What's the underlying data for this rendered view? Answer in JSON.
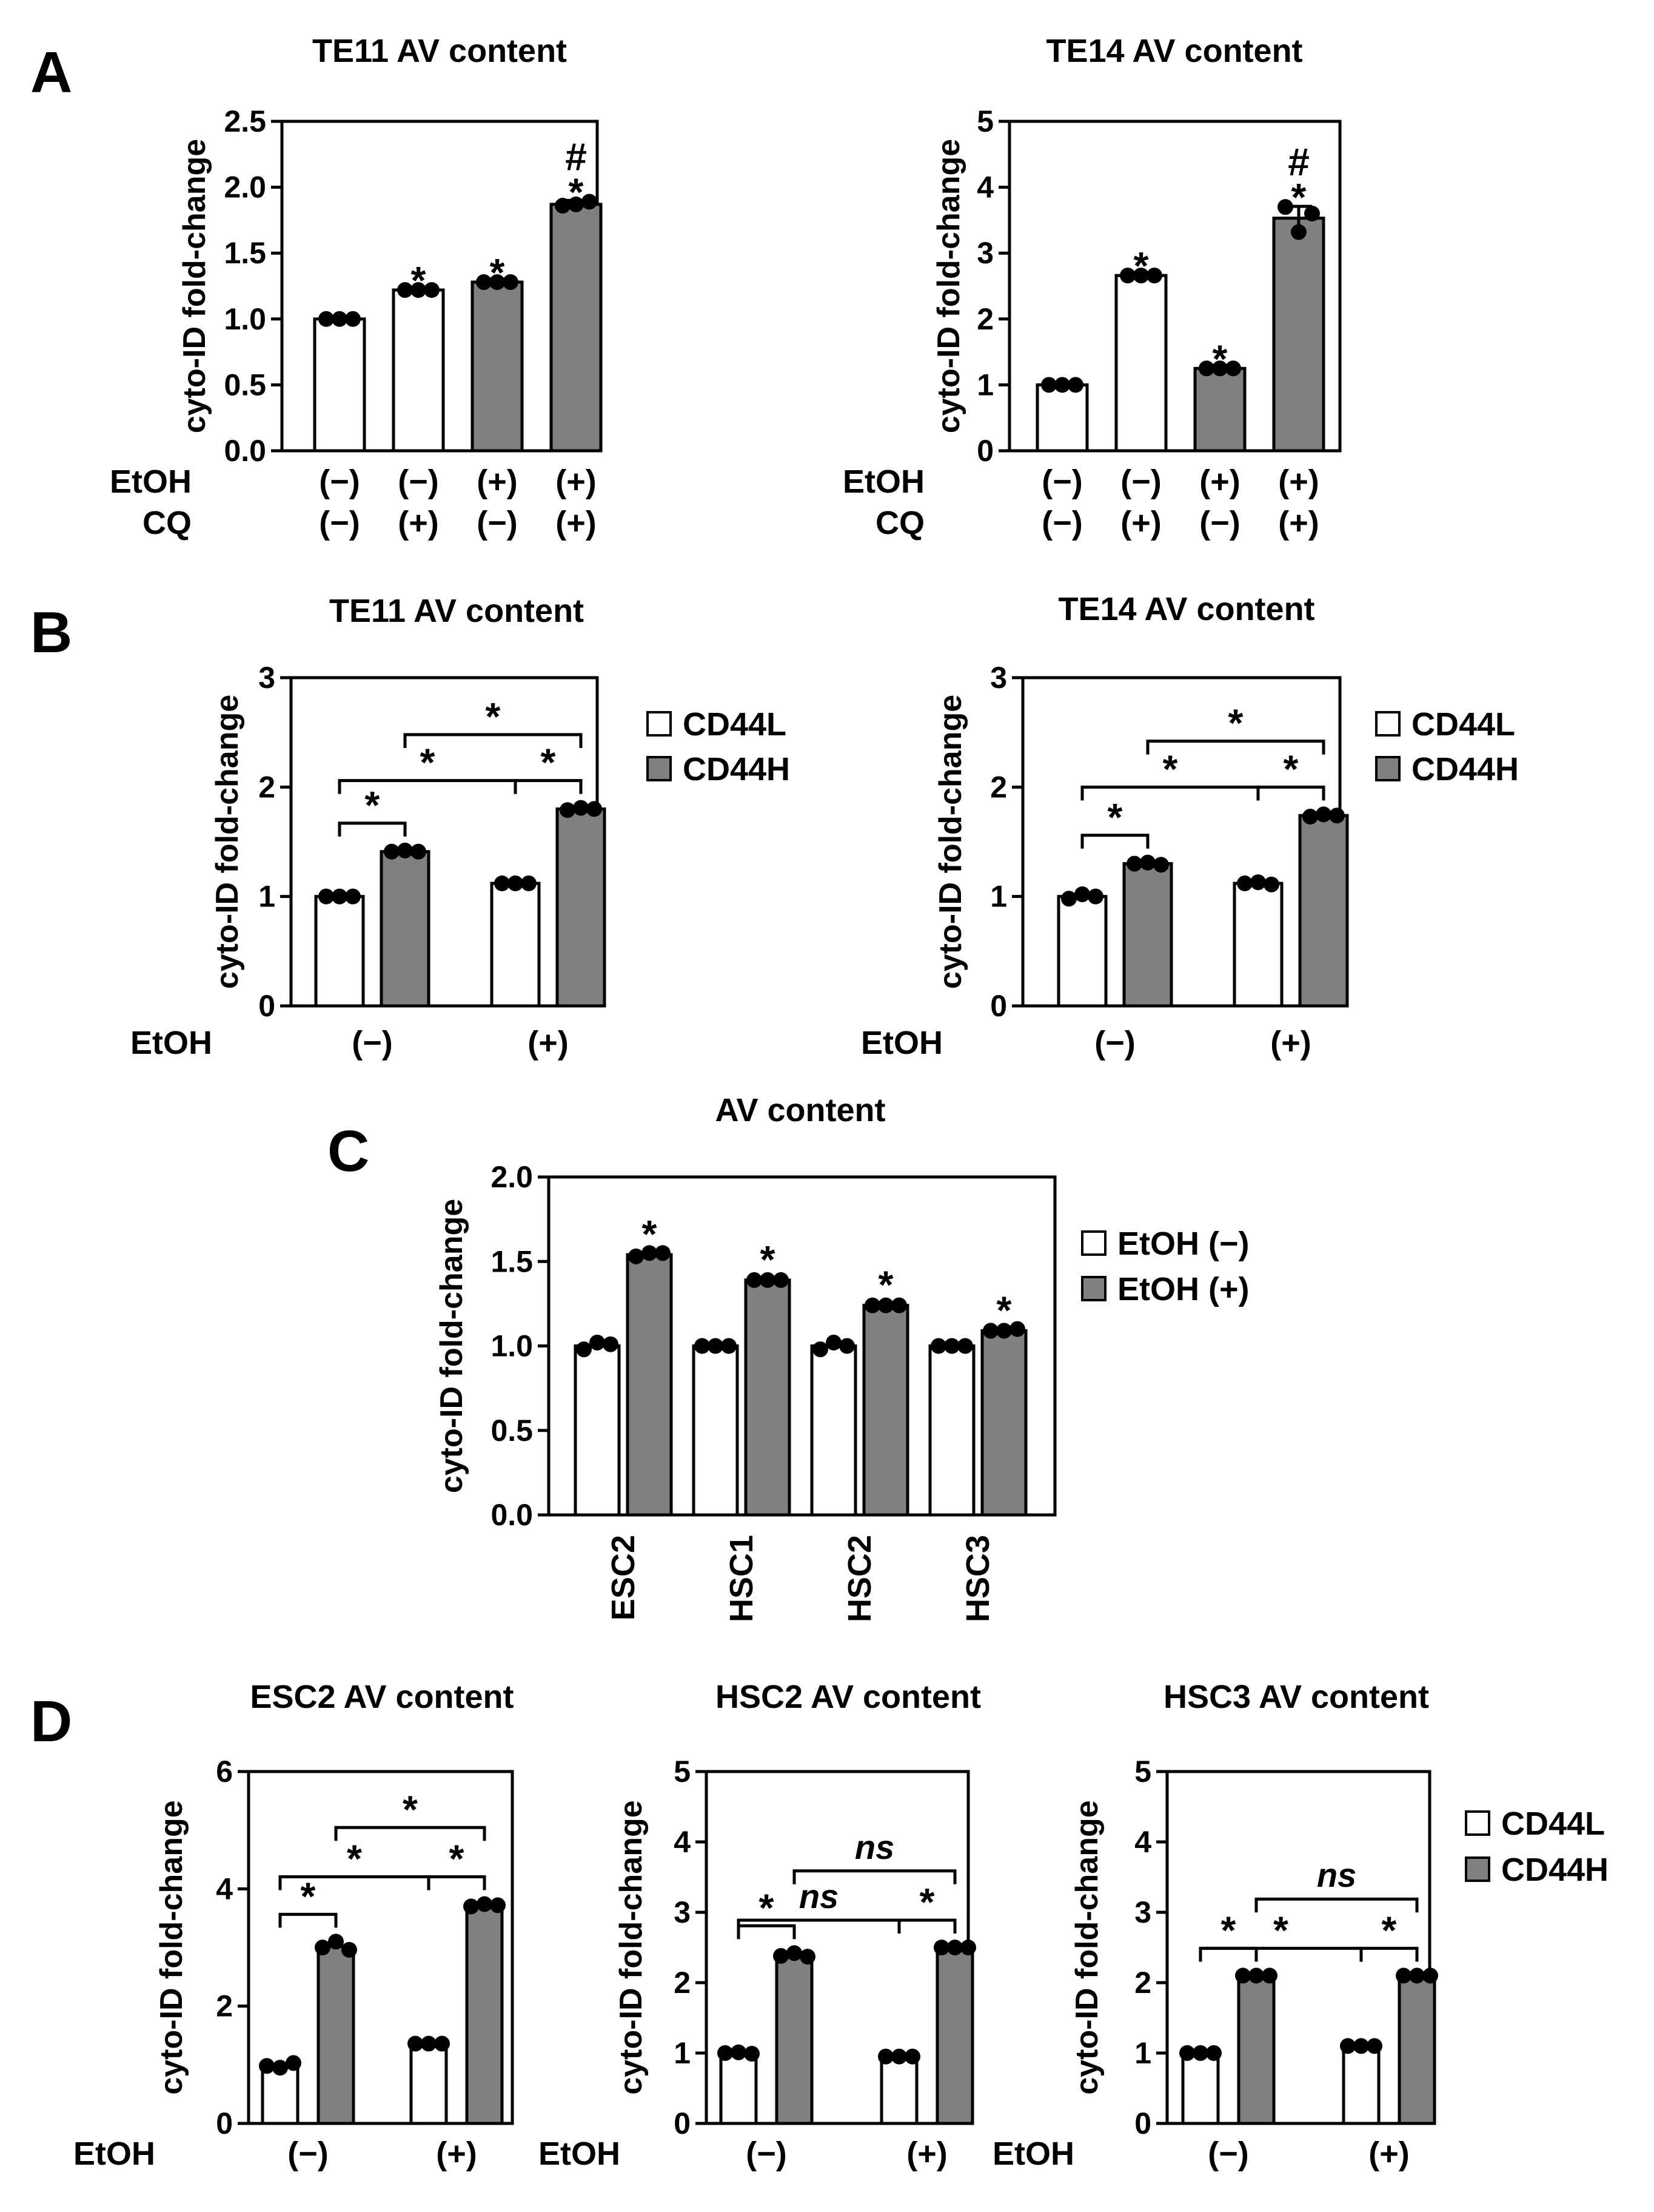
{
  "panel_labels": [
    "A",
    "B",
    "C",
    "D"
  ],
  "fills": {
    "white": "#ffffff",
    "grey": "#808080"
  },
  "chart_data": [
    {
      "id": "a1",
      "panel": "A",
      "type": "bar",
      "title": "TE11 AV content",
      "ylabel": "cyto-ID fold-change",
      "ylim": [
        0,
        2.5
      ],
      "yticks": [
        "0.0",
        "0.5",
        "1.0",
        "1.5",
        "2.0",
        "2.5"
      ],
      "row_labels": [
        "EtOH",
        "CQ"
      ],
      "groups": [
        [
          "(−)",
          "(−)"
        ],
        [
          "(−)",
          "(+)"
        ],
        [
          "(+)",
          "(−)"
        ],
        [
          "(+)",
          "(+)"
        ]
      ],
      "values": [
        1.0,
        1.22,
        1.28,
        1.87
      ],
      "errors": [
        0.01,
        0.01,
        0.01,
        0.03
      ],
      "points": [
        [
          1.0,
          1.0,
          1.0
        ],
        [
          1.22,
          1.22,
          1.22
        ],
        [
          1.28,
          1.28,
          1.28
        ],
        [
          1.86,
          1.87,
          1.89
        ]
      ],
      "fills": [
        "white",
        "white",
        "grey",
        "grey"
      ],
      "marks": [
        [],
        [
          "*"
        ],
        [
          "*"
        ],
        [
          "#",
          "*"
        ]
      ]
    },
    {
      "id": "a2",
      "panel": "A",
      "type": "bar",
      "title": "TE14 AV content",
      "ylabel": "cyto-ID fold-change",
      "ylim": [
        0,
        5
      ],
      "yticks": [
        "0",
        "1",
        "2",
        "3",
        "4",
        "5"
      ],
      "row_labels": [
        "EtOH",
        "CQ"
      ],
      "groups": [
        [
          "(−)",
          "(−)"
        ],
        [
          "(−)",
          "(+)"
        ],
        [
          "(+)",
          "(−)"
        ],
        [
          "(+)",
          "(+)"
        ]
      ],
      "values": [
        1.0,
        2.66,
        1.25,
        3.53
      ],
      "errors": [
        0.01,
        0.02,
        0.01,
        0.18
      ],
      "points": [
        [
          1.0,
          1.0,
          1.0
        ],
        [
          2.66,
          2.66,
          2.66
        ],
        [
          1.25,
          1.25,
          1.25
        ],
        [
          3.7,
          3.32,
          3.6
        ]
      ],
      "fills": [
        "white",
        "white",
        "grey",
        "grey"
      ],
      "marks": [
        [],
        [
          "*"
        ],
        [
          "*"
        ],
        [
          "#",
          "*"
        ]
      ]
    },
    {
      "id": "b1",
      "panel": "B",
      "type": "bar",
      "title": "TE11 AV content",
      "ylabel": "cyto-ID fold-change",
      "ylim": [
        0,
        3
      ],
      "yticks": [
        "0",
        "1",
        "2",
        "3"
      ],
      "row_labels": [
        "EtOH"
      ],
      "groups": [
        [
          "(−)"
        ],
        [
          "(+)"
        ]
      ],
      "series": [
        {
          "name": "CD44L",
          "fill": "white"
        },
        {
          "name": "CD44H",
          "fill": "grey"
        }
      ],
      "values": [
        [
          1.0,
          1.41
        ],
        [
          1.12,
          1.8
        ]
      ],
      "points": [
        [
          [
            1.0,
            1.0,
            1.0
          ],
          [
            1.41,
            1.42,
            1.41
          ]
        ],
        [
          [
            1.12,
            1.12,
            1.12
          ],
          [
            1.79,
            1.81,
            1.8
          ]
        ]
      ],
      "brackets": [
        {
          "a": [
            0,
            0
          ],
          "b": [
            0,
            1
          ],
          "level": 0,
          "label": "*"
        },
        {
          "a": [
            1,
            0
          ],
          "b": [
            1,
            1
          ],
          "level": 1,
          "label": "*"
        },
        {
          "a": [
            0,
            0
          ],
          "b": [
            1,
            0
          ],
          "level": 1,
          "label": "*"
        },
        {
          "a": [
            0,
            1
          ],
          "b": [
            1,
            1
          ],
          "level": 2,
          "label": "*"
        }
      ],
      "legend": [
        "CD44L",
        "CD44H"
      ]
    },
    {
      "id": "b2",
      "panel": "B",
      "type": "bar",
      "title": "TE14 AV content",
      "ylabel": "cyto-ID fold-change",
      "ylim": [
        0,
        3
      ],
      "yticks": [
        "0",
        "1",
        "2",
        "3"
      ],
      "row_labels": [
        "EtOH"
      ],
      "groups": [
        [
          "(−)"
        ],
        [
          "(+)"
        ]
      ],
      "series": [
        {
          "name": "CD44L",
          "fill": "white"
        },
        {
          "name": "CD44H",
          "fill": "grey"
        }
      ],
      "values": [
        [
          1.0,
          1.3
        ],
        [
          1.12,
          1.74
        ]
      ],
      "points": [
        [
          [
            0.98,
            1.02,
            1.0
          ],
          [
            1.3,
            1.31,
            1.29
          ]
        ],
        [
          [
            1.12,
            1.13,
            1.11
          ],
          [
            1.73,
            1.75,
            1.74
          ]
        ]
      ],
      "brackets": [
        {
          "a": [
            0,
            0
          ],
          "b": [
            0,
            1
          ],
          "level": 0,
          "label": "*"
        },
        {
          "a": [
            1,
            0
          ],
          "b": [
            1,
            1
          ],
          "level": 1,
          "label": "*"
        },
        {
          "a": [
            0,
            0
          ],
          "b": [
            1,
            0
          ],
          "level": 1,
          "label": "*"
        },
        {
          "a": [
            0,
            1
          ],
          "b": [
            1,
            1
          ],
          "level": 2,
          "label": "*"
        }
      ],
      "legend": [
        "CD44L",
        "CD44H"
      ]
    },
    {
      "id": "c",
      "panel": "C",
      "type": "bar",
      "title": "AV content",
      "ylabel": "cyto-ID fold-change",
      "ylim": [
        0,
        2.0
      ],
      "yticks": [
        "0.0",
        "0.5",
        "1.0",
        "1.5",
        "2.0"
      ],
      "categories": [
        "ESC2",
        "HSC1",
        "HSC2",
        "HSC3"
      ],
      "series": [
        {
          "name": "EtOH (−)",
          "fill": "white"
        },
        {
          "name": "EtOH (+)",
          "fill": "grey"
        }
      ],
      "values": [
        [
          1.0,
          1.54
        ],
        [
          1.0,
          1.39
        ],
        [
          1.0,
          1.24
        ],
        [
          1.0,
          1.09
        ]
      ],
      "points": [
        [
          [
            0.98,
            1.02,
            1.01
          ],
          [
            1.53,
            1.55,
            1.55
          ]
        ],
        [
          [
            1.0,
            1.0,
            1.0
          ],
          [
            1.39,
            1.39,
            1.39
          ]
        ],
        [
          [
            0.98,
            1.02,
            1.0
          ],
          [
            1.24,
            1.24,
            1.24
          ]
        ],
        [
          [
            1.0,
            1.0,
            1.0
          ],
          [
            1.09,
            1.09,
            1.1
          ]
        ]
      ],
      "marks": [
        "*",
        "*",
        "*",
        "*"
      ],
      "legend": [
        "EtOH (−)",
        "EtOH (+)"
      ]
    },
    {
      "id": "d1",
      "panel": "D",
      "type": "bar",
      "title": "ESC2 AV content",
      "ylabel": "cyto-ID fold-change",
      "ylim": [
        0,
        6
      ],
      "yticks": [
        "0",
        "2",
        "4",
        "6"
      ],
      "row_labels": [
        "EtOH"
      ],
      "groups": [
        [
          "(−)"
        ],
        [
          "(+)"
        ]
      ],
      "series": [
        {
          "name": "CD44L",
          "fill": "white"
        },
        {
          "name": "CD44H",
          "fill": "grey"
        }
      ],
      "values": [
        [
          1.0,
          3.02
        ],
        [
          1.36,
          3.72
        ]
      ],
      "points": [
        [
          [
            0.98,
            0.95,
            1.03
          ],
          [
            3.0,
            3.1,
            2.96
          ]
        ],
        [
          [
            1.36,
            1.36,
            1.36
          ],
          [
            3.7,
            3.74,
            3.72
          ]
        ]
      ],
      "brackets": [
        {
          "a": [
            0,
            0
          ],
          "b": [
            0,
            1
          ],
          "level": 0,
          "label": "*"
        },
        {
          "a": [
            1,
            0
          ],
          "b": [
            1,
            1
          ],
          "level": 1,
          "label": "*"
        },
        {
          "a": [
            0,
            0
          ],
          "b": [
            1,
            0
          ],
          "level": 1,
          "label": "*"
        },
        {
          "a": [
            0,
            1
          ],
          "b": [
            1,
            1
          ],
          "level": 2,
          "label": "*"
        }
      ]
    },
    {
      "id": "d2",
      "panel": "D",
      "type": "bar",
      "title": "HSC2 AV content",
      "ylabel": "cyto-ID fold-change",
      "ylim": [
        0,
        5
      ],
      "yticks": [
        "0",
        "1",
        "2",
        "3",
        "4",
        "5"
      ],
      "row_labels": [
        "EtOH"
      ],
      "groups": [
        [
          "(−)"
        ],
        [
          "(+)"
        ]
      ],
      "series": [
        {
          "name": "CD44L",
          "fill": "white"
        },
        {
          "name": "CD44H",
          "fill": "grey"
        }
      ],
      "values": [
        [
          1.0,
          2.39
        ],
        [
          0.95,
          2.5
        ]
      ],
      "points": [
        [
          [
            1.0,
            1.01,
            0.99
          ],
          [
            2.38,
            2.42,
            2.37
          ]
        ],
        [
          [
            0.95,
            0.95,
            0.95
          ],
          [
            2.5,
            2.5,
            2.5
          ]
        ]
      ],
      "brackets": [
        {
          "a": [
            0,
            0
          ],
          "b": [
            0,
            1
          ],
          "level": 0,
          "label": "*"
        },
        {
          "a": [
            1,
            0
          ],
          "b": [
            1,
            1
          ],
          "level": 0,
          "label": "*"
        },
        {
          "a": [
            0,
            0
          ],
          "b": [
            1,
            0
          ],
          "level": 1,
          "label": "ns"
        },
        {
          "a": [
            0,
            1
          ],
          "b": [
            1,
            1
          ],
          "level": 2,
          "label": "ns"
        }
      ]
    },
    {
      "id": "d3",
      "panel": "D",
      "type": "bar",
      "title": "HSC3 AV content",
      "ylabel": "cyto-ID fold-change",
      "ylim": [
        0,
        5
      ],
      "yticks": [
        "0",
        "1",
        "2",
        "3",
        "4",
        "5"
      ],
      "row_labels": [
        "EtOH"
      ],
      "groups": [
        [
          "(−)"
        ],
        [
          "(+)"
        ]
      ],
      "series": [
        {
          "name": "CD44L",
          "fill": "white"
        },
        {
          "name": "CD44H",
          "fill": "grey"
        }
      ],
      "values": [
        [
          1.0,
          2.1
        ],
        [
          1.1,
          2.1
        ]
      ],
      "points": [
        [
          [
            1.0,
            1.0,
            1.0
          ],
          [
            2.1,
            2.1,
            2.1
          ]
        ],
        [
          [
            1.1,
            1.1,
            1.1
          ],
          [
            2.1,
            2.1,
            2.1
          ]
        ]
      ],
      "brackets": [
        {
          "a": [
            0,
            0
          ],
          "b": [
            0,
            1
          ],
          "level": 0,
          "label": "*"
        },
        {
          "a": [
            1,
            0
          ],
          "b": [
            1,
            1
          ],
          "level": 0,
          "label": "*"
        },
        {
          "a": [
            0,
            0
          ],
          "b": [
            1,
            0
          ],
          "level": 1,
          "label": "*"
        },
        {
          "a": [
            0,
            1
          ],
          "b": [
            1,
            1
          ],
          "level": 2,
          "label": "ns"
        }
      ],
      "legend": [
        "CD44L",
        "CD44H"
      ]
    }
  ]
}
